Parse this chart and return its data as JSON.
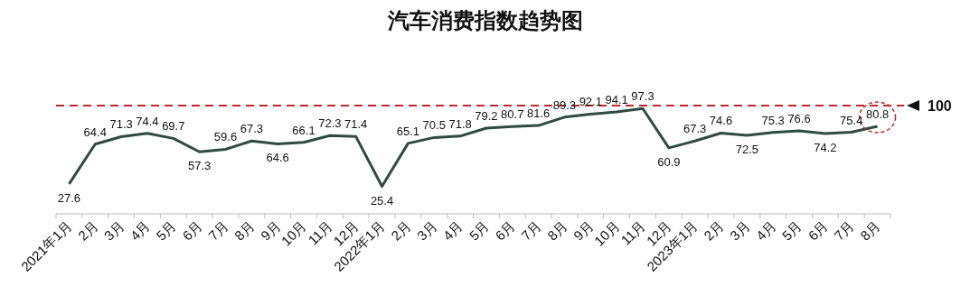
{
  "chart_data": {
    "type": "line",
    "title": "汽车消费指数趋势图",
    "categories": [
      "2021年1月",
      "2月",
      "3月",
      "4月",
      "5月",
      "6月",
      "7月",
      "8月",
      "9月",
      "10月",
      "11月",
      "12月",
      "2022年1月",
      "2月",
      "3月",
      "4月",
      "5月",
      "6月",
      "7月",
      "8月",
      "9月",
      "10月",
      "11月",
      "12月",
      "2023年1月",
      "2月",
      "3月",
      "4月",
      "5月",
      "6月",
      "7月",
      "8月"
    ],
    "values": [
      27.6,
      64.4,
      71.3,
      74.4,
      69.7,
      57.3,
      59.6,
      67.3,
      64.6,
      66.1,
      72.3,
      71.4,
      25.4,
      65.1,
      70.5,
      71.8,
      79.2,
      80.7,
      81.6,
      89.3,
      92.1,
      94.1,
      97.3,
      60.9,
      67.3,
      74.6,
      72.5,
      75.3,
      76.6,
      74.2,
      75.4,
      80.8
    ],
    "color": "#2f4a42",
    "line_style": "solid",
    "data_labels": true,
    "ref_lines": [
      {
        "axis": "y",
        "value": 100,
        "label": "100",
        "color": "#c0282d",
        "line_style": "dashed"
      }
    ]
  }
}
